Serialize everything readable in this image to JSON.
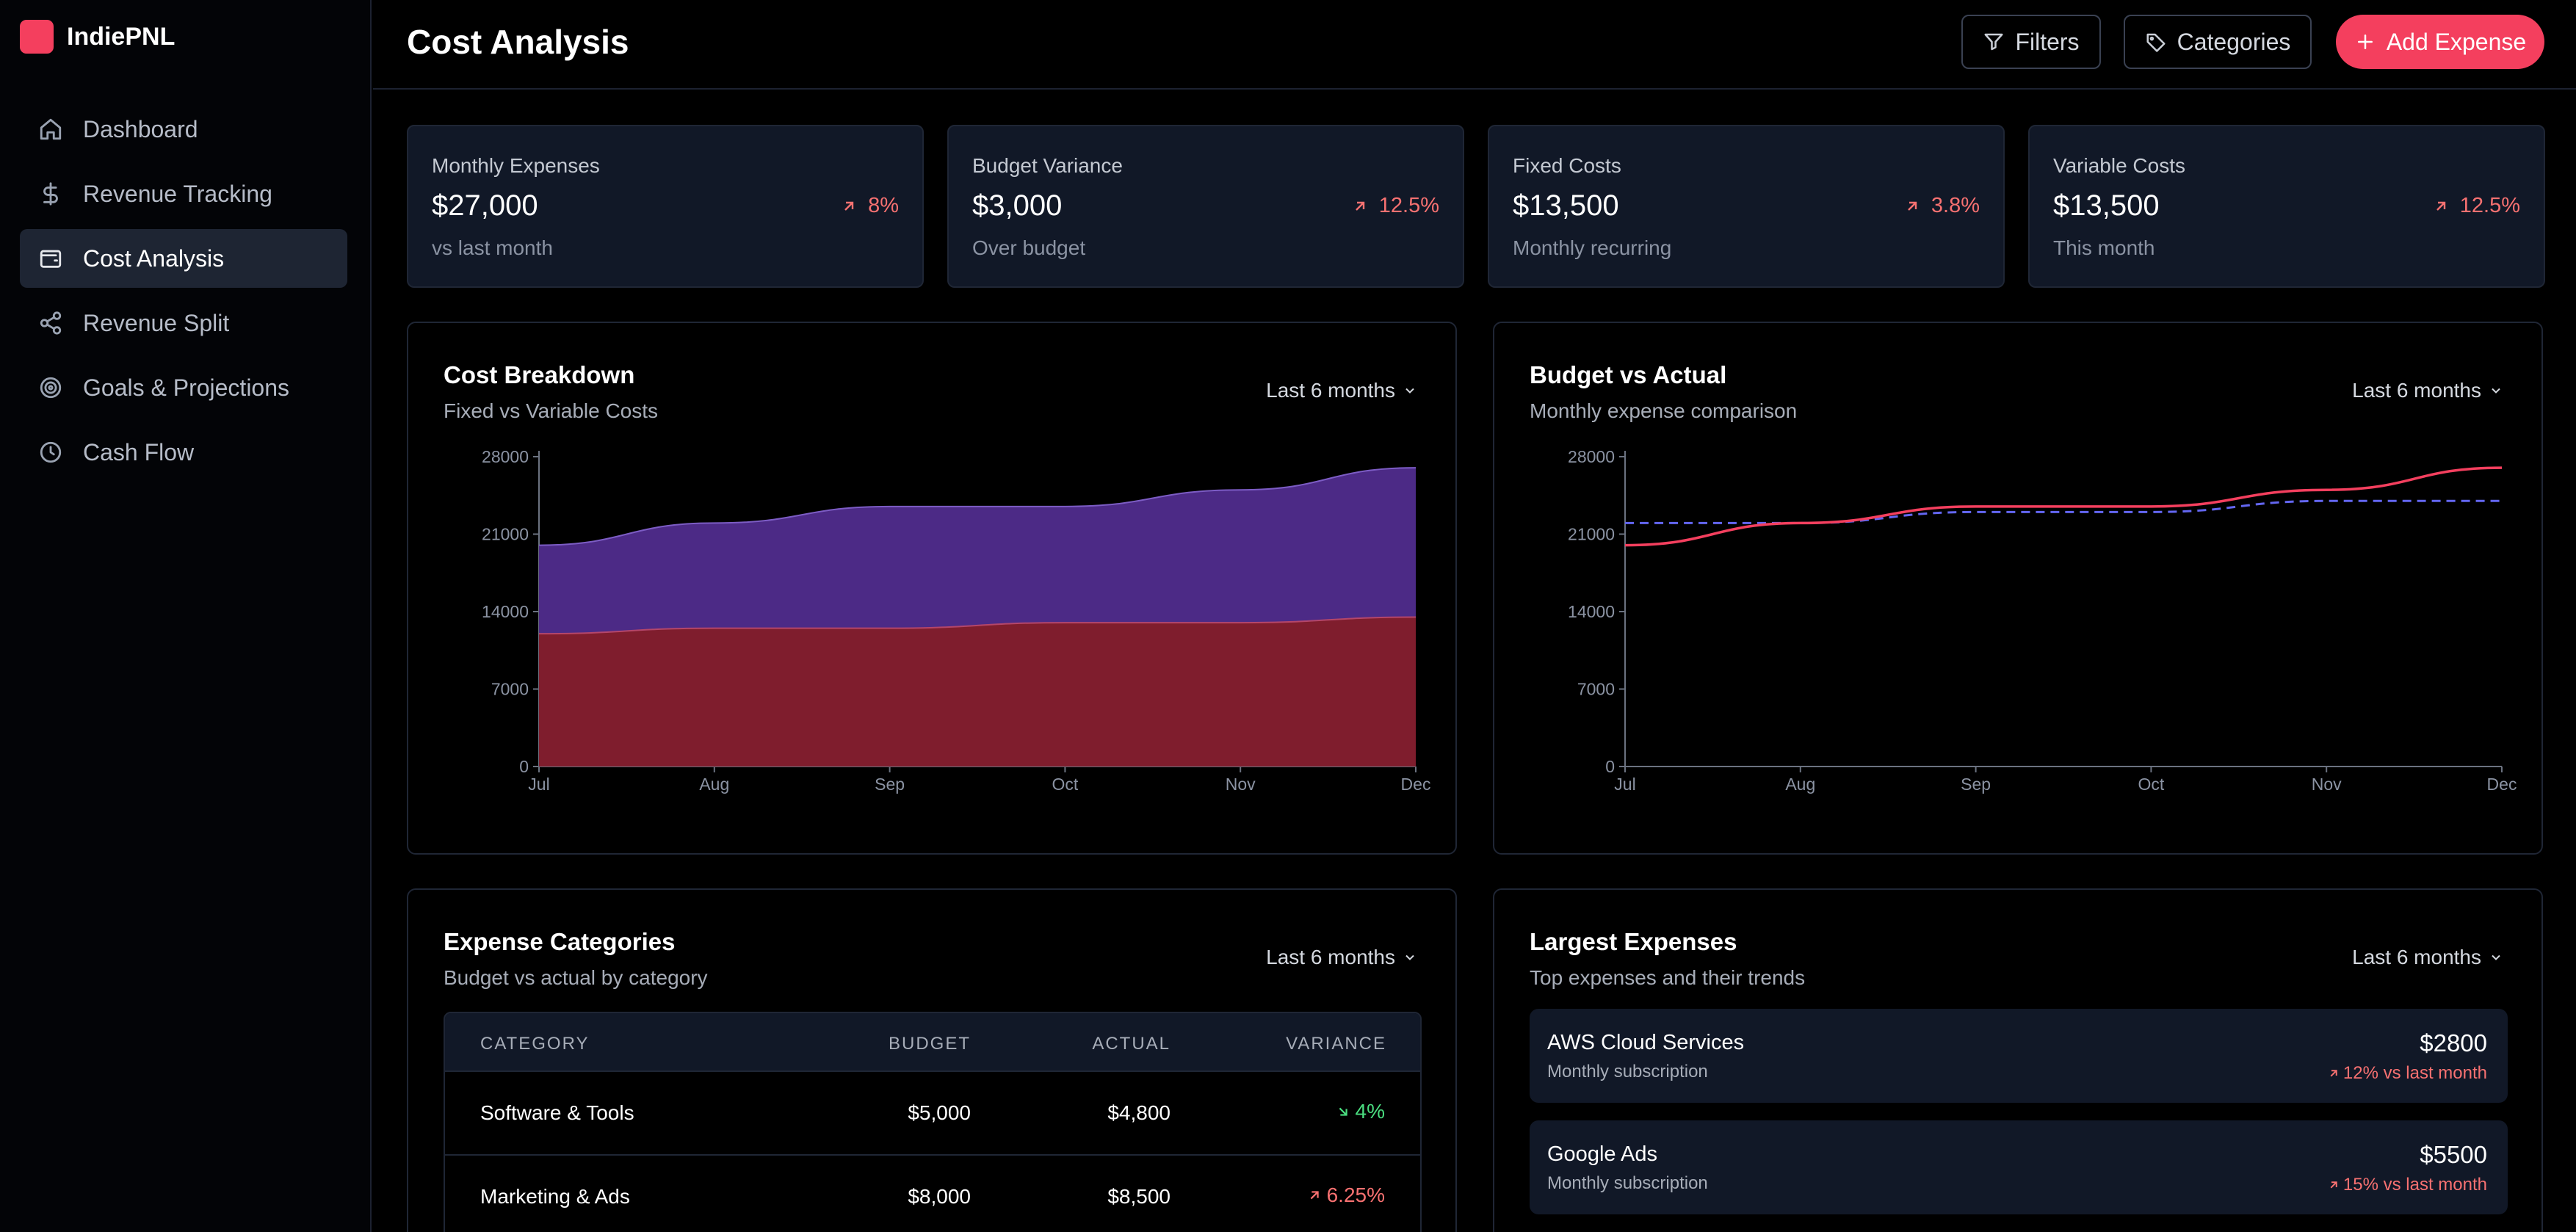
{
  "brand": {
    "name": "IndiePNL"
  },
  "sidebar": {
    "items": [
      {
        "label": "Dashboard",
        "icon": "home-icon",
        "active": false
      },
      {
        "label": "Revenue Tracking",
        "icon": "dollar-icon",
        "active": false
      },
      {
        "label": "Cost Analysis",
        "icon": "wallet-icon",
        "active": true
      },
      {
        "label": "Revenue Split",
        "icon": "share-icon",
        "active": false
      },
      {
        "label": "Goals & Projections",
        "icon": "target-icon",
        "active": false
      },
      {
        "label": "Cash Flow",
        "icon": "clock-icon",
        "active": false
      }
    ]
  },
  "header": {
    "title": "Cost Analysis",
    "filters_label": "Filters",
    "categories_label": "Categories",
    "add_expense_label": "Add Expense"
  },
  "kpis": [
    {
      "label": "Monthly Expenses",
      "value": "$27,000",
      "sub": "vs last month",
      "change": "8%"
    },
    {
      "label": "Budget Variance",
      "value": "$3,000",
      "sub": "Over budget",
      "change": "12.5%"
    },
    {
      "label": "Fixed Costs",
      "value": "$13,500",
      "sub": "Monthly recurring",
      "change": "3.8%"
    },
    {
      "label": "Variable Costs",
      "value": "$13,500",
      "sub": "This month",
      "change": "12.5%"
    }
  ],
  "cost_breakdown": {
    "title": "Cost Breakdown",
    "subtitle": "Fixed vs Variable Costs",
    "range": "Last 6 months"
  },
  "budget_vs_actual": {
    "title": "Budget vs Actual",
    "subtitle": "Monthly expense comparison",
    "range": "Last 6 months"
  },
  "expense_categories": {
    "title": "Expense Categories",
    "subtitle": "Budget vs actual by category",
    "range": "Last 6 months",
    "columns": [
      "CATEGORY",
      "BUDGET",
      "ACTUAL",
      "VARIANCE"
    ],
    "rows": [
      {
        "category": "Software & Tools",
        "budget": "$5,000",
        "actual": "$4,800",
        "variance": "4%",
        "direction": "down"
      },
      {
        "category": "Marketing & Ads",
        "budget": "$8,000",
        "actual": "$8,500",
        "variance": "6.25%",
        "direction": "up"
      }
    ]
  },
  "largest_expenses": {
    "title": "Largest Expenses",
    "subtitle": "Top expenses and their trends",
    "range": "Last 6 months",
    "items": [
      {
        "name": "AWS Cloud Services",
        "type": "Monthly subscription",
        "amount": "$2800",
        "trend": "12% vs last month"
      },
      {
        "name": "Google Ads",
        "type": "Monthly subscription",
        "amount": "$5500",
        "trend": "15% vs last month"
      }
    ]
  },
  "colors": {
    "accent": "#f43f5e",
    "fixed_fill": "#7f1d2d",
    "variable_fill": "#4c2a86",
    "actual_line": "#f43f5e",
    "budget_line": "#6366f1",
    "negative": "#f87171",
    "positive": "#4ade80"
  },
  "chart_data": [
    {
      "type": "area",
      "stacked": true,
      "x": [
        "Jul",
        "Aug",
        "Sep",
        "Oct",
        "Nov",
        "Dec"
      ],
      "series": [
        {
          "name": "Fixed",
          "values": [
            12000,
            12500,
            12500,
            13000,
            13000,
            13500
          ]
        },
        {
          "name": "Variable",
          "values": [
            8000,
            9500,
            11000,
            10500,
            12000,
            13500
          ]
        }
      ],
      "yticks": [
        0,
        7000,
        14000,
        21000,
        28000
      ],
      "ylim": [
        0,
        28000
      ]
    },
    {
      "type": "line",
      "x": [
        "Jul",
        "Aug",
        "Sep",
        "Oct",
        "Nov",
        "Dec"
      ],
      "series": [
        {
          "name": "Actual",
          "values": [
            20000,
            22000,
            23500,
            23500,
            25000,
            27000
          ]
        },
        {
          "name": "Budget",
          "values": [
            22000,
            22000,
            23000,
            23000,
            24000,
            24000
          ]
        }
      ],
      "yticks": [
        0,
        7000,
        14000,
        21000,
        28000
      ],
      "ylim": [
        0,
        28000
      ]
    }
  ]
}
